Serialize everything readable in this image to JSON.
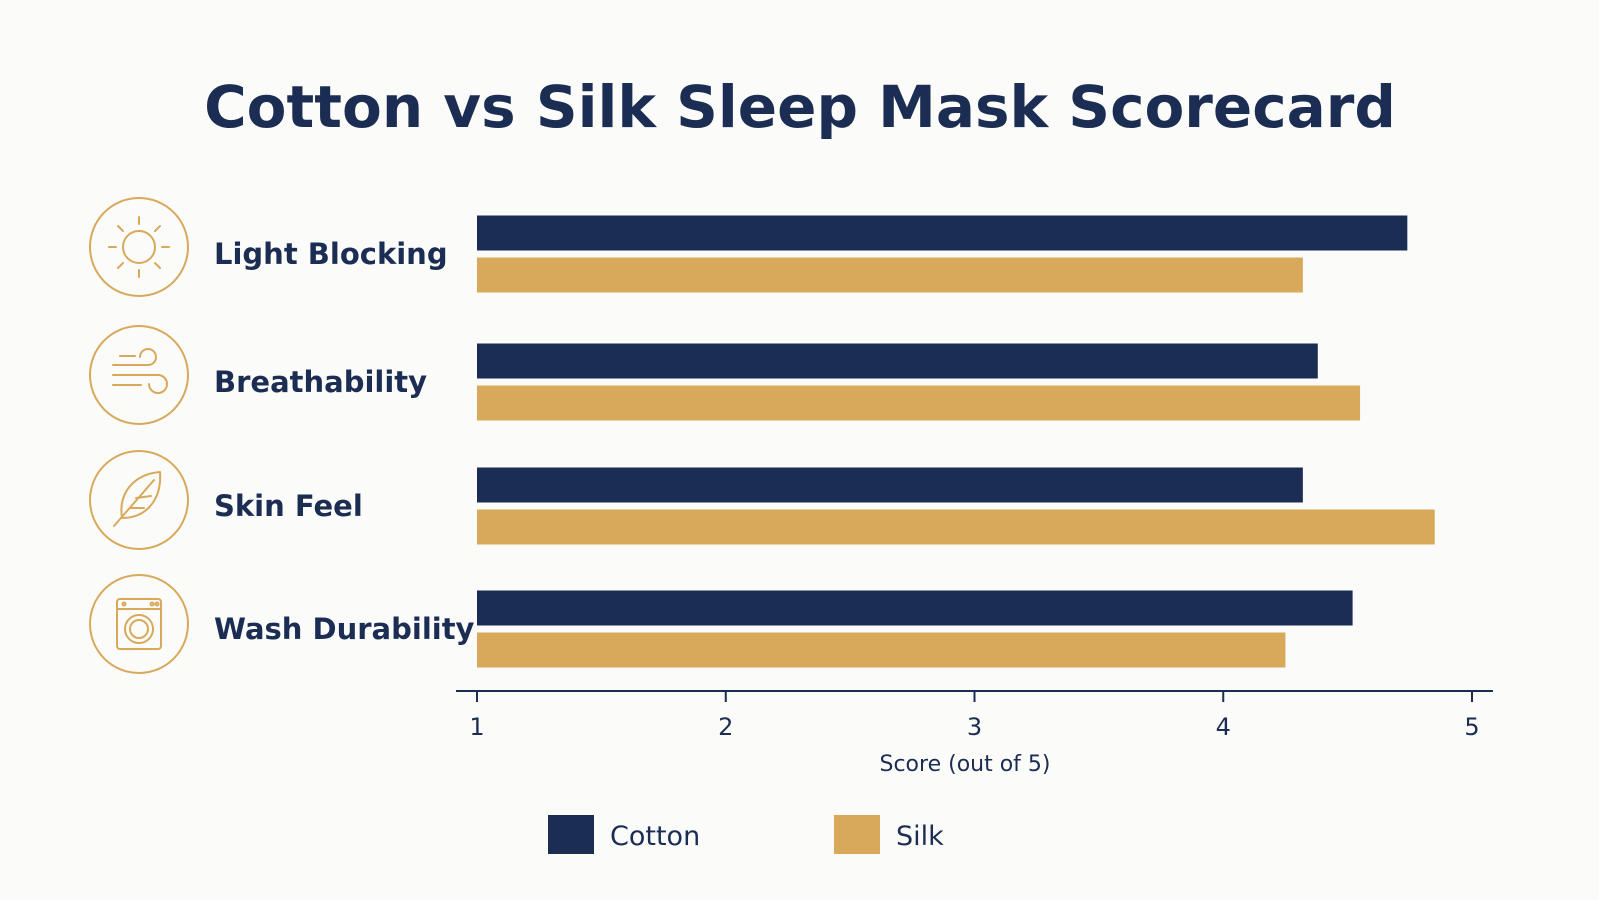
{
  "colors": {
    "cotton": "#1b2d52",
    "silk": "#d8a95b",
    "text": "#1b2d52",
    "icon": "#d8a95b"
  },
  "chart_data": {
    "type": "bar",
    "orientation": "horizontal",
    "title": "Cotton vs Silk Sleep Mask Scorecard",
    "categories": [
      "Light Blocking",
      "Breathability",
      "Skin Feel",
      "Wash Durability"
    ],
    "category_icons": [
      "sun-icon",
      "wind-icon",
      "feather-icon",
      "washing-machine-icon"
    ],
    "series": [
      {
        "name": "Cotton",
        "values": [
          4.74,
          4.38,
          4.32,
          4.52
        ]
      },
      {
        "name": "Silk",
        "values": [
          4.32,
          4.55,
          4.85,
          4.25
        ]
      }
    ],
    "xlabel": "Score (out of 5)",
    "xlim": [
      1,
      5
    ],
    "xticks": [
      "1",
      "2",
      "3",
      "4",
      "5"
    ],
    "grid": false,
    "legend_position": "bottom-center"
  }
}
